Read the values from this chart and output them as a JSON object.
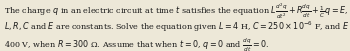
{
  "background_color": "#ede8d8",
  "line1": "The charge $q$ in an electric circuit at time $t$ satisfies the equation $L\\frac{d^{2}q}{dt^{2}} + R\\frac{dq}{dt} + \\frac{1}{C}q = E$, where",
  "line2": "$L, R, C$ and $E$ are constants. Solve the equation given $L = 4$ H, $C = 250 \\times 10^{-6}$ F, and $E =$",
  "line3": "400 V, when $R = 300$ Ω. Assume that when $t = 0$, $q = 0$ and $\\frac{dq}{dt} = 0$.",
  "fontsize": 5.8,
  "figsize": [
    3.5,
    0.51
  ],
  "dpi": 100,
  "text_color": "#1a1a1a"
}
